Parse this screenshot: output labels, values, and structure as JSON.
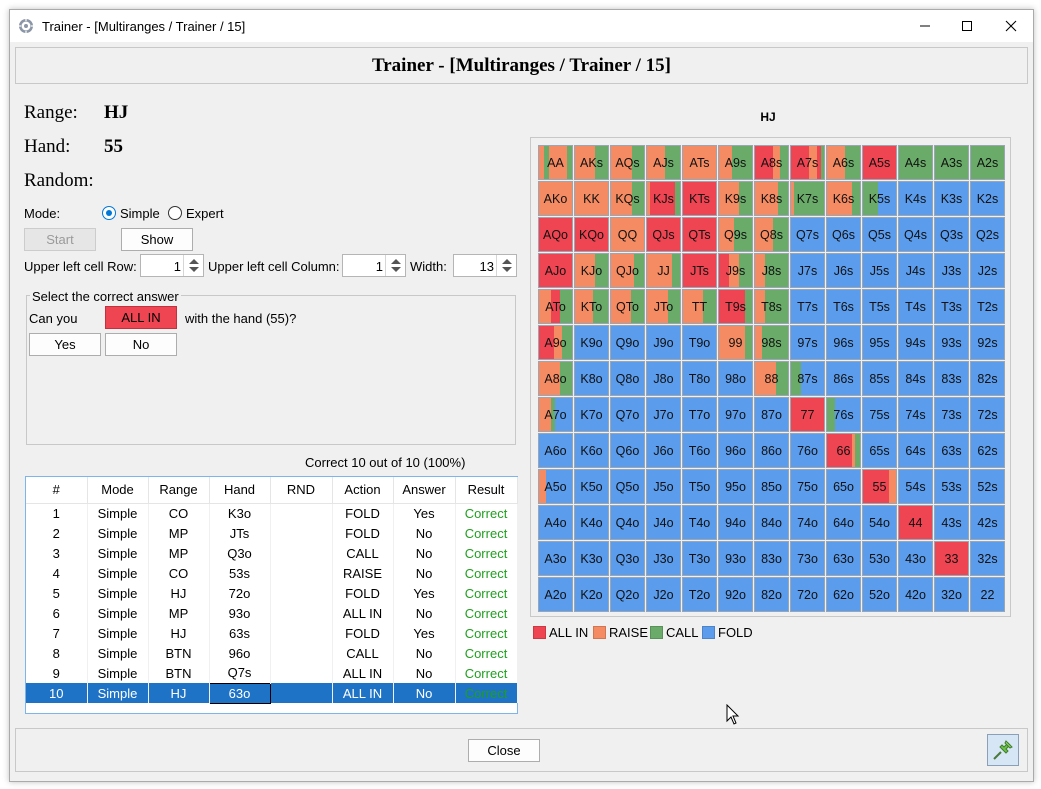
{
  "window": {
    "title": "Trainer - [Multiranges / Trainer / 15]",
    "minimize_icon": "minimize-icon",
    "maximize_icon": "maximize-icon",
    "close_icon": "close-icon"
  },
  "header": {
    "title": "Trainer - [Multiranges / Trainer / 15]"
  },
  "info": {
    "range_label": "Range:",
    "range_value": "HJ",
    "hand_label": "Hand:",
    "hand_value": "55",
    "random_label": "Random:"
  },
  "mode": {
    "label": "Mode:",
    "simple": "Simple",
    "expert": "Expert",
    "selected": "Simple"
  },
  "buttons": {
    "start": "Start",
    "show": "Show",
    "yes": "Yes",
    "no": "No",
    "close": "Close"
  },
  "spinners": {
    "row_label": "Upper left cell Row:",
    "row_value": "1",
    "col_label": "Upper left cell Column:",
    "col_value": "1",
    "width_label": "Width:",
    "width_value": "13"
  },
  "question": {
    "group_title": "Select the correct answer",
    "prefix": "Can you",
    "action": "ALL IN",
    "suffix": "with the hand (55)?"
  },
  "score": {
    "text": "Correct 10 out of 10 (100%)"
  },
  "table": {
    "headers": [
      "#",
      "Mode",
      "Range",
      "Hand",
      "RND",
      "Action",
      "Answer",
      "Result"
    ],
    "rows": [
      [
        "1",
        "Simple",
        "CO",
        "K3o",
        "",
        "FOLD",
        "Yes",
        "Correct"
      ],
      [
        "2",
        "Simple",
        "MP",
        "JTs",
        "",
        "FOLD",
        "No",
        "Correct"
      ],
      [
        "3",
        "Simple",
        "MP",
        "Q3o",
        "",
        "CALL",
        "No",
        "Correct"
      ],
      [
        "4",
        "Simple",
        "CO",
        "53s",
        "",
        "RAISE",
        "No",
        "Correct"
      ],
      [
        "5",
        "Simple",
        "HJ",
        "72o",
        "",
        "FOLD",
        "Yes",
        "Correct"
      ],
      [
        "6",
        "Simple",
        "MP",
        "93o",
        "",
        "ALL IN",
        "No",
        "Correct"
      ],
      [
        "7",
        "Simple",
        "HJ",
        "63s",
        "",
        "FOLD",
        "Yes",
        "Correct"
      ],
      [
        "8",
        "Simple",
        "BTN",
        "96o",
        "",
        "CALL",
        "No",
        "Correct"
      ],
      [
        "9",
        "Simple",
        "BTN",
        "Q7s",
        "",
        "ALL IN",
        "No",
        "Correct"
      ],
      [
        "10",
        "Simple",
        "HJ",
        "63o",
        "",
        "ALL IN",
        "No",
        "Correct"
      ]
    ],
    "selected_row": 9
  },
  "grid": {
    "title": "HJ",
    "colors": {
      "A": "#ef4452",
      "R": "#f58b62",
      "C": "#6aab6a",
      "F": "#5b9cec"
    },
    "hands": [
      [
        "AA",
        "AKs",
        "AQs",
        "AJs",
        "ATs",
        "A9s",
        "A8s",
        "A7s",
        "A6s",
        "A5s",
        "A4s",
        "A3s",
        "A2s"
      ],
      [
        "AKo",
        "KK",
        "KQs",
        "KJs",
        "KTs",
        "K9s",
        "K8s",
        "K7s",
        "K6s",
        "K5s",
        "K4s",
        "K3s",
        "K2s"
      ],
      [
        "AQo",
        "KQo",
        "QQ",
        "QJs",
        "QTs",
        "Q9s",
        "Q8s",
        "Q7s",
        "Q6s",
        "Q5s",
        "Q4s",
        "Q3s",
        "Q2s"
      ],
      [
        "AJo",
        "KJo",
        "QJo",
        "JJ",
        "JTs",
        "J9s",
        "J8s",
        "J7s",
        "J6s",
        "J5s",
        "J4s",
        "J3s",
        "J2s"
      ],
      [
        "ATo",
        "KTo",
        "QTo",
        "JTo",
        "TT",
        "T9s",
        "T8s",
        "T7s",
        "T6s",
        "T5s",
        "T4s",
        "T3s",
        "T2s"
      ],
      [
        "A9o",
        "K9o",
        "Q9o",
        "J9o",
        "T9o",
        "99",
        "98s",
        "97s",
        "96s",
        "95s",
        "94s",
        "93s",
        "92s"
      ],
      [
        "A8o",
        "K8o",
        "Q8o",
        "J8o",
        "T8o",
        "98o",
        "88",
        "87s",
        "86s",
        "85s",
        "84s",
        "83s",
        "82s"
      ],
      [
        "A7o",
        "K7o",
        "Q7o",
        "J7o",
        "T7o",
        "97o",
        "87o",
        "77",
        "76s",
        "75s",
        "74s",
        "73s",
        "72s"
      ],
      [
        "A6o",
        "K6o",
        "Q6o",
        "J6o",
        "T6o",
        "96o",
        "86o",
        "76o",
        "66",
        "65s",
        "64s",
        "63s",
        "62s"
      ],
      [
        "A5o",
        "K5o",
        "Q5o",
        "J5o",
        "T5o",
        "95o",
        "85o",
        "75o",
        "65o",
        "55",
        "54s",
        "53s",
        "52s"
      ],
      [
        "A4o",
        "K4o",
        "Q4o",
        "J4o",
        "T4o",
        "94o",
        "84o",
        "74o",
        "64o",
        "54o",
        "44",
        "43s",
        "42s"
      ],
      [
        "A3o",
        "K3o",
        "Q3o",
        "J3o",
        "T3o",
        "93o",
        "83o",
        "73o",
        "63o",
        "53o",
        "43o",
        "33",
        "32s"
      ],
      [
        "A2o",
        "K2o",
        "Q2o",
        "J2o",
        "T2o",
        "92o",
        "82o",
        "72o",
        "62o",
        "52o",
        "42o",
        "32o",
        "22"
      ]
    ],
    "mix": {
      "0,0": [
        [
          "R",
          0.15
        ],
        [
          "C",
          0.15
        ],
        [
          "R",
          0.55
        ],
        [
          "C",
          0.15
        ]
      ],
      "0,1": [
        [
          "R",
          0.6
        ],
        [
          "C",
          0.4
        ]
      ],
      "0,2": [
        [
          "R",
          0.65
        ],
        [
          "C",
          0.35
        ]
      ],
      "0,3": [
        [
          "R",
          0.55
        ],
        [
          "C",
          0.45
        ]
      ],
      "0,4": [
        [
          "R",
          1.0
        ]
      ],
      "0,5": [
        [
          "R",
          0.4
        ],
        [
          "C",
          0.6
        ]
      ],
      "0,6": [
        [
          "A",
          0.55
        ],
        [
          "R",
          0.2
        ],
        [
          "C",
          0.25
        ]
      ],
      "0,7": [
        [
          "A",
          0.55
        ],
        [
          "R",
          0.25
        ],
        [
          "A",
          0.1
        ],
        [
          "C",
          0.1
        ]
      ],
      "0,8": [
        [
          "R",
          0.55
        ],
        [
          "C",
          0.45
        ]
      ],
      "0,9": [
        [
          "A",
          1.0
        ]
      ],
      "0,10": [
        [
          "C",
          1.0
        ]
      ],
      "0,11": [
        [
          "C",
          1.0
        ]
      ],
      "0,12": [
        [
          "C",
          1.0
        ]
      ],
      "1,0": [
        [
          "R",
          1.0
        ]
      ],
      "1,1": [
        [
          "R",
          1.0
        ]
      ],
      "1,2": [
        [
          "R",
          0.65
        ],
        [
          "C",
          0.35
        ]
      ],
      "1,3": [
        [
          "R",
          0.1
        ],
        [
          "A",
          0.75
        ],
        [
          "C",
          0.15
        ]
      ],
      "1,4": [
        [
          "A",
          1.0
        ]
      ],
      "1,5": [
        [
          "R",
          0.6
        ],
        [
          "C",
          0.4
        ]
      ],
      "1,6": [
        [
          "R",
          0.7
        ],
        [
          "C",
          0.3
        ]
      ],
      "1,7": [
        [
          "R",
          0.1
        ],
        [
          "C",
          0.9
        ]
      ],
      "1,8": [
        [
          "R",
          0.75
        ],
        [
          "C",
          0.25
        ]
      ],
      "1,9": [
        [
          "C",
          0.45
        ],
        [
          "F",
          0.55
        ]
      ],
      "2,0": [
        [
          "A",
          1.0
        ]
      ],
      "2,1": [
        [
          "A",
          1.0
        ]
      ],
      "2,2": [
        [
          "R",
          1.0
        ]
      ],
      "2,3": [
        [
          "A",
          1.0
        ]
      ],
      "2,4": [
        [
          "A",
          1.0
        ]
      ],
      "2,5": [
        [
          "R",
          0.45
        ],
        [
          "C",
          0.55
        ]
      ],
      "2,6": [
        [
          "R",
          0.55
        ],
        [
          "C",
          0.45
        ]
      ],
      "3,0": [
        [
          "A",
          1.0
        ]
      ],
      "3,1": [
        [
          "R",
          0.6
        ],
        [
          "C",
          0.4
        ]
      ],
      "3,2": [
        [
          "R",
          0.7
        ],
        [
          "C",
          0.3
        ]
      ],
      "3,3": [
        [
          "R",
          0.75
        ],
        [
          "C",
          0.25
        ]
      ],
      "3,4": [
        [
          "A",
          1.0
        ]
      ],
      "3,5": [
        [
          "A",
          0.3
        ],
        [
          "R",
          0.3
        ],
        [
          "C",
          0.4
        ]
      ],
      "3,6": [
        [
          "R",
          0.3
        ],
        [
          "C",
          0.7
        ]
      ],
      "4,0": [
        [
          "R",
          0.35
        ],
        [
          "A",
          0.3
        ],
        [
          "C",
          0.35
        ]
      ],
      "4,1": [
        [
          "R",
          0.55
        ],
        [
          "C",
          0.45
        ]
      ],
      "4,2": [
        [
          "R",
          0.6
        ],
        [
          "C",
          0.4
        ]
      ],
      "4,3": [
        [
          "R",
          0.65
        ],
        [
          "C",
          0.35
        ]
      ],
      "4,4": [
        [
          "R",
          0.6
        ],
        [
          "C",
          0.4
        ]
      ],
      "4,5": [
        [
          "A",
          0.8
        ],
        [
          "C",
          0.2
        ]
      ],
      "4,6": [
        [
          "R",
          0.3
        ],
        [
          "C",
          0.7
        ]
      ],
      "5,0": [
        [
          "A",
          0.45
        ],
        [
          "R",
          0.25
        ],
        [
          "C",
          0.3
        ]
      ],
      "5,5": [
        [
          "R",
          0.8
        ],
        [
          "C",
          0.2
        ]
      ],
      "5,6": [
        [
          "R",
          0.2
        ],
        [
          "C",
          0.8
        ]
      ],
      "6,0": [
        [
          "R",
          0.65
        ],
        [
          "C",
          0.35
        ]
      ],
      "6,6": [
        [
          "R",
          0.65
        ],
        [
          "C",
          0.35
        ]
      ],
      "6,7": [
        [
          "C",
          0.3
        ],
        [
          "F",
          0.7
        ]
      ],
      "7,0": [
        [
          "R",
          0.35
        ],
        [
          "C",
          0.15
        ],
        [
          "F",
          0.5
        ]
      ],
      "7,7": [
        [
          "A",
          1.0
        ]
      ],
      "7,8": [
        [
          "C",
          0.25
        ],
        [
          "F",
          0.75
        ]
      ],
      "8,8": [
        [
          "A",
          0.75
        ],
        [
          "R",
          0.1
        ],
        [
          "C",
          0.15
        ]
      ],
      "9,0": [
        [
          "R",
          0.2
        ],
        [
          "F",
          0.8
        ]
      ],
      "9,9": [
        [
          "A",
          0.8
        ],
        [
          "R",
          0.2
        ]
      ],
      "10,10": [
        [
          "A",
          1.0
        ]
      ],
      "11,11": [
        [
          "A",
          1.0
        ]
      ]
    }
  },
  "legend": [
    {
      "key": "A",
      "label": "ALL IN"
    },
    {
      "key": "R",
      "label": "RAISE"
    },
    {
      "key": "C",
      "label": "CALL"
    },
    {
      "key": "F",
      "label": "FOLD"
    }
  ],
  "icons": {
    "app": "app-icon",
    "pin": "pin-icon",
    "cursor": "mouse-cursor-icon"
  }
}
